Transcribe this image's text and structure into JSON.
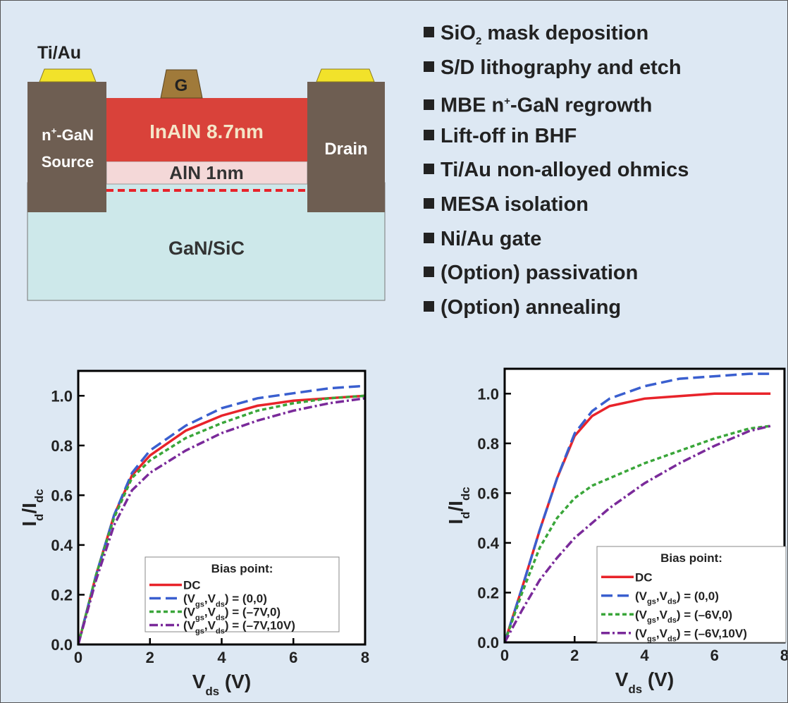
{
  "diagram": {
    "contact_label": "Ti/Au",
    "gate": "G",
    "source_material": [
      {
        "text": "n"
      },
      {
        "text": "+",
        "script": "sup"
      },
      {
        "text": "-GaN"
      }
    ],
    "source": "Source",
    "barrier": "InAlN 8.7nm",
    "spacer": "AlN 1nm",
    "drain": "Drain",
    "substrate": "GaN/SiC"
  },
  "process_steps": [
    [
      {
        "text": "SiO"
      },
      {
        "text": "2",
        "script": "sub"
      },
      {
        "text": " mask deposition"
      }
    ],
    [
      {
        "text": "S/D lithography and etch"
      }
    ],
    [
      {
        "text": "MBE n"
      },
      {
        "text": "+",
        "script": "sup"
      },
      {
        "text": "-GaN regrowth"
      }
    ],
    [
      {
        "text": "Lift-off in BHF"
      }
    ],
    [
      {
        "text": "Ti/Au non-alloyed ohmics"
      }
    ],
    [
      {
        "text": "MESA isolation"
      }
    ],
    [
      {
        "text": "Ni/Au gate"
      }
    ],
    [
      {
        "text": "(Option) passivation"
      }
    ],
    [
      {
        "text": "(Option) annealing"
      }
    ]
  ],
  "chart_data": [
    {
      "type": "line",
      "xlabel": [
        {
          "text": "V"
        },
        {
          "text": "ds",
          "script": "sub"
        },
        {
          "text": " (V)"
        }
      ],
      "ylabel": [
        {
          "text": "I"
        },
        {
          "text": "d",
          "script": "sub"
        },
        {
          "text": "/I"
        },
        {
          "text": "dc",
          "script": "sub"
        }
      ],
      "legend_title": "Bias point:",
      "legend": "lower right",
      "xlim": [
        0,
        8
      ],
      "ylim": [
        0,
        1.1
      ],
      "xticks": [
        0,
        2,
        4,
        6,
        8
      ],
      "yticks": [
        {
          "value": 0,
          "label": "0.0"
        },
        {
          "value": 0.2,
          "label": "0.2"
        },
        {
          "value": 0.4,
          "label": "0.4"
        },
        {
          "value": 0.6,
          "label": "0.6"
        },
        {
          "value": 0.8,
          "label": "0.8"
        },
        {
          "value": 1,
          "label": "1.0"
        }
      ],
      "x": [
        0,
        0.5,
        1,
        1.5,
        2,
        3,
        4,
        5,
        6,
        7,
        8
      ],
      "series": [
        {
          "name": [
            {
              "text": "DC"
            }
          ],
          "color": "#e8232a",
          "dash": "solid",
          "values": [
            0,
            0.28,
            0.52,
            0.68,
            0.76,
            0.86,
            0.92,
            0.96,
            0.98,
            0.99,
            1.0
          ]
        },
        {
          "name": [
            {
              "text": "(V"
            },
            {
              "text": "gs",
              "script": "sub"
            },
            {
              "text": ",V"
            },
            {
              "text": "ds",
              "script": "sub"
            },
            {
              "text": ") = (0,0)"
            }
          ],
          "color": "#3a5fcf",
          "dash": "dashed",
          "values": [
            0,
            0.28,
            0.52,
            0.69,
            0.78,
            0.88,
            0.95,
            0.99,
            1.01,
            1.03,
            1.04
          ]
        },
        {
          "name": [
            {
              "text": "(V"
            },
            {
              "text": "gs",
              "script": "sub"
            },
            {
              "text": ",V"
            },
            {
              "text": "ds",
              "script": "sub"
            },
            {
              "text": ") = (–7V,0)"
            }
          ],
          "color": "#3aa63a",
          "dash": "dotted",
          "values": [
            0,
            0.28,
            0.51,
            0.67,
            0.74,
            0.83,
            0.89,
            0.94,
            0.97,
            0.99,
            1.0
          ]
        },
        {
          "name": [
            {
              "text": "(V"
            },
            {
              "text": "gs",
              "script": "sub"
            },
            {
              "text": ",V"
            },
            {
              "text": "ds",
              "script": "sub"
            },
            {
              "text": ") = (–7V,10V)"
            }
          ],
          "color": "#7a2a9a",
          "dash": "dashdot",
          "values": [
            0,
            0.26,
            0.48,
            0.62,
            0.69,
            0.78,
            0.85,
            0.9,
            0.94,
            0.97,
            0.99
          ]
        }
      ]
    },
    {
      "type": "line",
      "xlabel": [
        {
          "text": "V"
        },
        {
          "text": "ds",
          "script": "sub"
        },
        {
          "text": " (V)"
        }
      ],
      "ylabel": [
        {
          "text": "I"
        },
        {
          "text": "d",
          "script": "sub"
        },
        {
          "text": "/I"
        },
        {
          "text": "dc",
          "script": "sub"
        }
      ],
      "legend_title": "Bias point:",
      "legend": "lower right",
      "xlim": [
        0,
        8
      ],
      "ylim": [
        0,
        1.1
      ],
      "xticks": [
        0,
        2,
        4,
        6,
        8
      ],
      "yticks": [
        {
          "value": 0,
          "label": "0.0"
        },
        {
          "value": 0.2,
          "label": "0.2"
        },
        {
          "value": 0.4,
          "label": "0.4"
        },
        {
          "value": 0.6,
          "label": "0.6"
        },
        {
          "value": 0.8,
          "label": "0.8"
        },
        {
          "value": 1,
          "label": "1.0"
        }
      ],
      "x": [
        0,
        0.5,
        1,
        1.5,
        2,
        2.5,
        3,
        4,
        5,
        6,
        7,
        7.6
      ],
      "series": [
        {
          "name": [
            {
              "text": "DC"
            }
          ],
          "color": "#e8232a",
          "dash": "solid",
          "values": [
            0,
            0.22,
            0.45,
            0.66,
            0.83,
            0.91,
            0.95,
            0.98,
            0.99,
            1.0,
            1.0,
            1.0
          ]
        },
        {
          "name": [
            {
              "text": "(V"
            },
            {
              "text": "gs",
              "script": "sub"
            },
            {
              "text": ",V"
            },
            {
              "text": "ds",
              "script": "sub"
            },
            {
              "text": ") = (0,0)"
            }
          ],
          "color": "#3a5fcf",
          "dash": "dashed",
          "values": [
            0,
            0.22,
            0.45,
            0.66,
            0.84,
            0.93,
            0.98,
            1.03,
            1.06,
            1.07,
            1.08,
            1.08
          ]
        },
        {
          "name": [
            {
              "text": "(V"
            },
            {
              "text": "gs",
              "script": "sub"
            },
            {
              "text": ",V"
            },
            {
              "text": "ds",
              "script": "sub"
            },
            {
              "text": ") = (–6V,0)"
            }
          ],
          "color": "#3aa63a",
          "dash": "dotted",
          "values": [
            0,
            0.2,
            0.38,
            0.5,
            0.58,
            0.63,
            0.66,
            0.72,
            0.77,
            0.82,
            0.86,
            0.87
          ]
        },
        {
          "name": [
            {
              "text": "(V"
            },
            {
              "text": "gs",
              "script": "sub"
            },
            {
              "text": ",V"
            },
            {
              "text": "ds",
              "script": "sub"
            },
            {
              "text": ") = (–6V,10V)"
            }
          ],
          "color": "#7a2a9a",
          "dash": "dashdot",
          "values": [
            0,
            0.13,
            0.25,
            0.34,
            0.42,
            0.48,
            0.54,
            0.64,
            0.72,
            0.79,
            0.85,
            0.87
          ]
        }
      ]
    }
  ]
}
